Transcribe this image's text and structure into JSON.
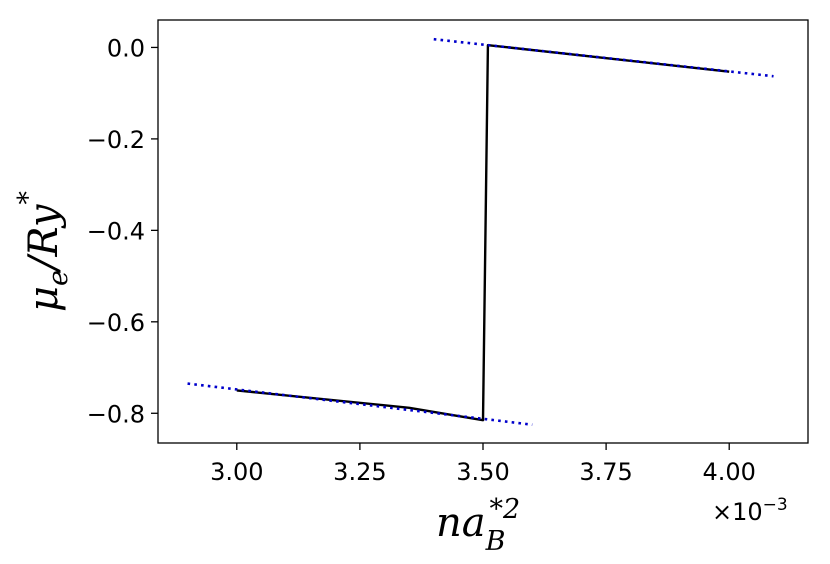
{
  "chart_data": {
    "type": "line",
    "xlabel": {
      "base": "na",
      "sub": "B",
      "sup": "*2"
    },
    "ylabel": {
      "base": "μ",
      "sub": "e",
      "rest": "/Ry",
      "sup": "*"
    },
    "x_offset_text": {
      "base": "×10",
      "exp": "−3"
    },
    "x_unit_scale": 0.001,
    "xlim": [
      2.84,
      4.16
    ],
    "ylim": [
      -0.865,
      0.06
    ],
    "xticks": [
      3.0,
      3.25,
      3.5,
      3.75,
      4.0
    ],
    "xtick_labels": [
      "3.00",
      "3.25",
      "3.50",
      "3.75",
      "4.00"
    ],
    "yticks": [
      0.0,
      -0.2,
      -0.4,
      -0.6,
      -0.8
    ],
    "ytick_labels": [
      "0.0",
      "−0.2",
      "−0.4",
      "−0.6",
      "−0.8"
    ],
    "series": [
      {
        "style": "solid",
        "color": "#000000",
        "points": [
          [
            3.0,
            -0.75
          ],
          [
            3.35,
            -0.788
          ],
          [
            3.5,
            -0.815
          ],
          [
            3.51,
            0.005
          ],
          [
            4.0,
            -0.053
          ]
        ]
      },
      {
        "style": "dotted",
        "color": "#0000cc",
        "points": [
          [
            2.9,
            -0.735
          ],
          [
            3.6,
            -0.825
          ]
        ]
      },
      {
        "style": "dotted",
        "color": "#0000cc",
        "points": [
          [
            3.4,
            0.018
          ],
          [
            4.09,
            -0.063
          ]
        ]
      }
    ]
  }
}
